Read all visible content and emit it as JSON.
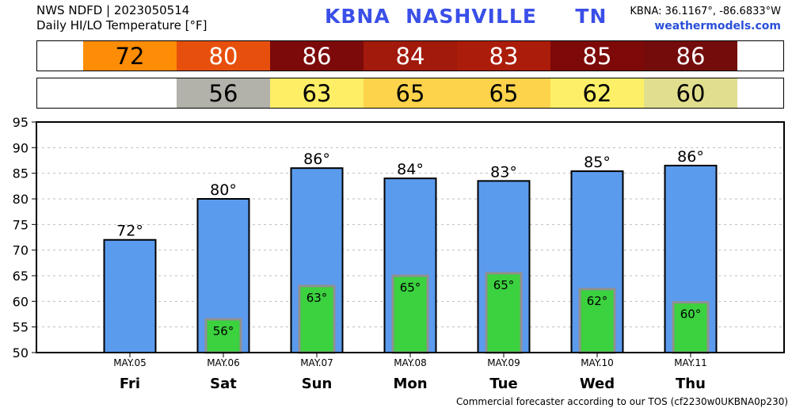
{
  "header": {
    "line1": "NWS NDFD | 2023050514",
    "line2": "Daily HI/LO Temperature [°F]",
    "location": "KBNA  NASHVILLE     TN",
    "coords": "KBNA: 36.1167°, -86.6833°W",
    "site": "weathermodels.com"
  },
  "hi_strip": [
    {
      "value": "72",
      "color": "#fd8c06",
      "text_color": "#000000"
    },
    {
      "value": "80",
      "color": "#e7500c",
      "text_color": "#ffffff"
    },
    {
      "value": "86",
      "color": "#7c0a0a",
      "text_color": "#ffffff"
    },
    {
      "value": "84",
      "color": "#a11a0b",
      "text_color": "#ffffff"
    },
    {
      "value": "83",
      "color": "#ab1c0a",
      "text_color": "#ffffff"
    },
    {
      "value": "85",
      "color": "#7d0909",
      "text_color": "#ffffff"
    },
    {
      "value": "86",
      "color": "#740c0c",
      "text_color": "#ffffff"
    }
  ],
  "lo_strip": [
    {
      "value": "",
      "color": "#ffffff",
      "text_color": "#000000"
    },
    {
      "value": "56",
      "color": "#b2b1aa",
      "text_color": "#000000"
    },
    {
      "value": "63",
      "color": "#fdee66",
      "text_color": "#000000"
    },
    {
      "value": "65",
      "color": "#fdd34c",
      "text_color": "#000000"
    },
    {
      "value": "65",
      "color": "#fdd34c",
      "text_color": "#000000"
    },
    {
      "value": "62",
      "color": "#fdf068",
      "text_color": "#000000"
    },
    {
      "value": "60",
      "color": "#e1df8e",
      "text_color": "#000000"
    }
  ],
  "chart_data": {
    "type": "bar",
    "categories": [
      "MAY.05",
      "MAY.06",
      "MAY.07",
      "MAY.08",
      "MAY.09",
      "MAY.10",
      "MAY.11"
    ],
    "days": [
      "Fri",
      "Sat",
      "Sun",
      "Mon",
      "Tue",
      "Wed",
      "Thu"
    ],
    "series": [
      {
        "values": [
          72,
          80,
          86,
          84,
          83.5,
          85.4,
          86.5
        ],
        "labels": [
          "72°",
          "80°",
          "86°",
          "84°",
          "83°",
          "85°",
          "86°"
        ],
        "color": "#5b9bee"
      },
      {
        "values": [
          null,
          56.5,
          63,
          65,
          65.5,
          62.4,
          59.8
        ],
        "labels": [
          "",
          "56°",
          "63°",
          "65°",
          "65°",
          "62°",
          "60°"
        ],
        "color": "#3bd13f"
      }
    ],
    "yticks": [
      "50",
      "55",
      "60",
      "65",
      "70",
      "75",
      "80",
      "85",
      "90",
      "95"
    ],
    "ylim": [
      50,
      95
    ],
    "grid": true,
    "bar_colors": {
      "hi": "#5b9bee",
      "lo": "#3bd13f",
      "lo_border": "#909090",
      "grid": "#bdbdbd"
    }
  },
  "footer": "Commercial forecaster according to our TOS (cf2230w0UKBNA0p230)"
}
